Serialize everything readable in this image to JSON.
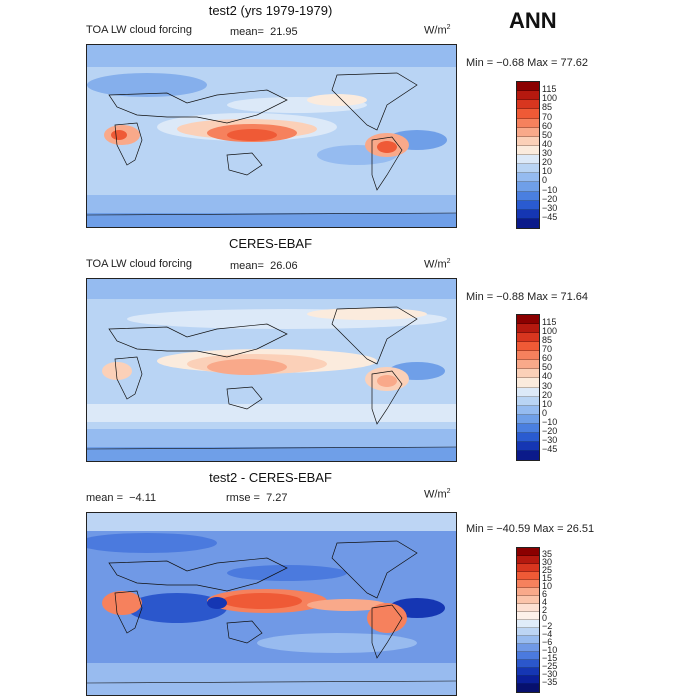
{
  "header": {
    "season": "ANN"
  },
  "panels": [
    {
      "title": "test2 (yrs 1979-1979)",
      "variable": "TOA LW cloud forcing",
      "stat_label": "mean=",
      "stat_value": "21.95",
      "unit_base": "W/m",
      "unit_exp": "2",
      "range": "Min =   −0.68  Max =   77.62",
      "levels": [
        "115",
        "100",
        "85",
        "70",
        "60",
        "50",
        "40",
        "30",
        "20",
        "10",
        "0",
        "−10",
        "−20",
        "−30",
        "−45"
      ],
      "colors": [
        "#8b0000",
        "#b5190f",
        "#d8361f",
        "#ef5a36",
        "#f6815d",
        "#f9a98a",
        "#fbd0b8",
        "#fbebdd",
        "#dce9f8",
        "#b9d4f4",
        "#95bbf0",
        "#6f9fe8",
        "#4a7fe0",
        "#2a5bd0",
        "#1536b3",
        "#0b1a8a"
      ]
    },
    {
      "title": "CERES-EBAF",
      "variable": "TOA LW cloud forcing",
      "stat_label": "mean=",
      "stat_value": "26.06",
      "unit_base": "W/m",
      "unit_exp": "2",
      "range": "Min =   −0.88  Max =   71.64",
      "levels": [
        "115",
        "100",
        "85",
        "70",
        "60",
        "50",
        "40",
        "30",
        "20",
        "10",
        "0",
        "−10",
        "−20",
        "−30",
        "−45"
      ],
      "colors": [
        "#8b0000",
        "#b5190f",
        "#d8361f",
        "#ef5a36",
        "#f6815d",
        "#f9a98a",
        "#fbd0b8",
        "#fbebdd",
        "#dce9f8",
        "#b9d4f4",
        "#95bbf0",
        "#6f9fe8",
        "#4a7fe0",
        "#2a5bd0",
        "#1536b3",
        "#0b1a8a"
      ]
    },
    {
      "title": "test2 - CERES-EBAF",
      "mean_label": "mean =",
      "mean_value": "−4.11",
      "rmse_label": "rmse =",
      "rmse_value": "7.27",
      "unit_base": "W/m",
      "unit_exp": "2",
      "range": "Min =  −40.59  Max =   26.51",
      "levels": [
        "35",
        "30",
        "25",
        "15",
        "10",
        "6",
        "4",
        "2",
        "0",
        "−2",
        "−4",
        "−6",
        "−10",
        "−15",
        "−25",
        "−30",
        "−35"
      ],
      "colors": [
        "#8b0000",
        "#b5190f",
        "#d8361f",
        "#ef5a36",
        "#f6815d",
        "#f9a98a",
        "#fbc4aa",
        "#fde0d2",
        "#fdf1ea",
        "#e0ecf9",
        "#bdd5f4",
        "#98bbef",
        "#7099e6",
        "#4b7ade",
        "#2b57cc",
        "#1536b3",
        "#0b1f99",
        "#07106e"
      ]
    }
  ]
}
